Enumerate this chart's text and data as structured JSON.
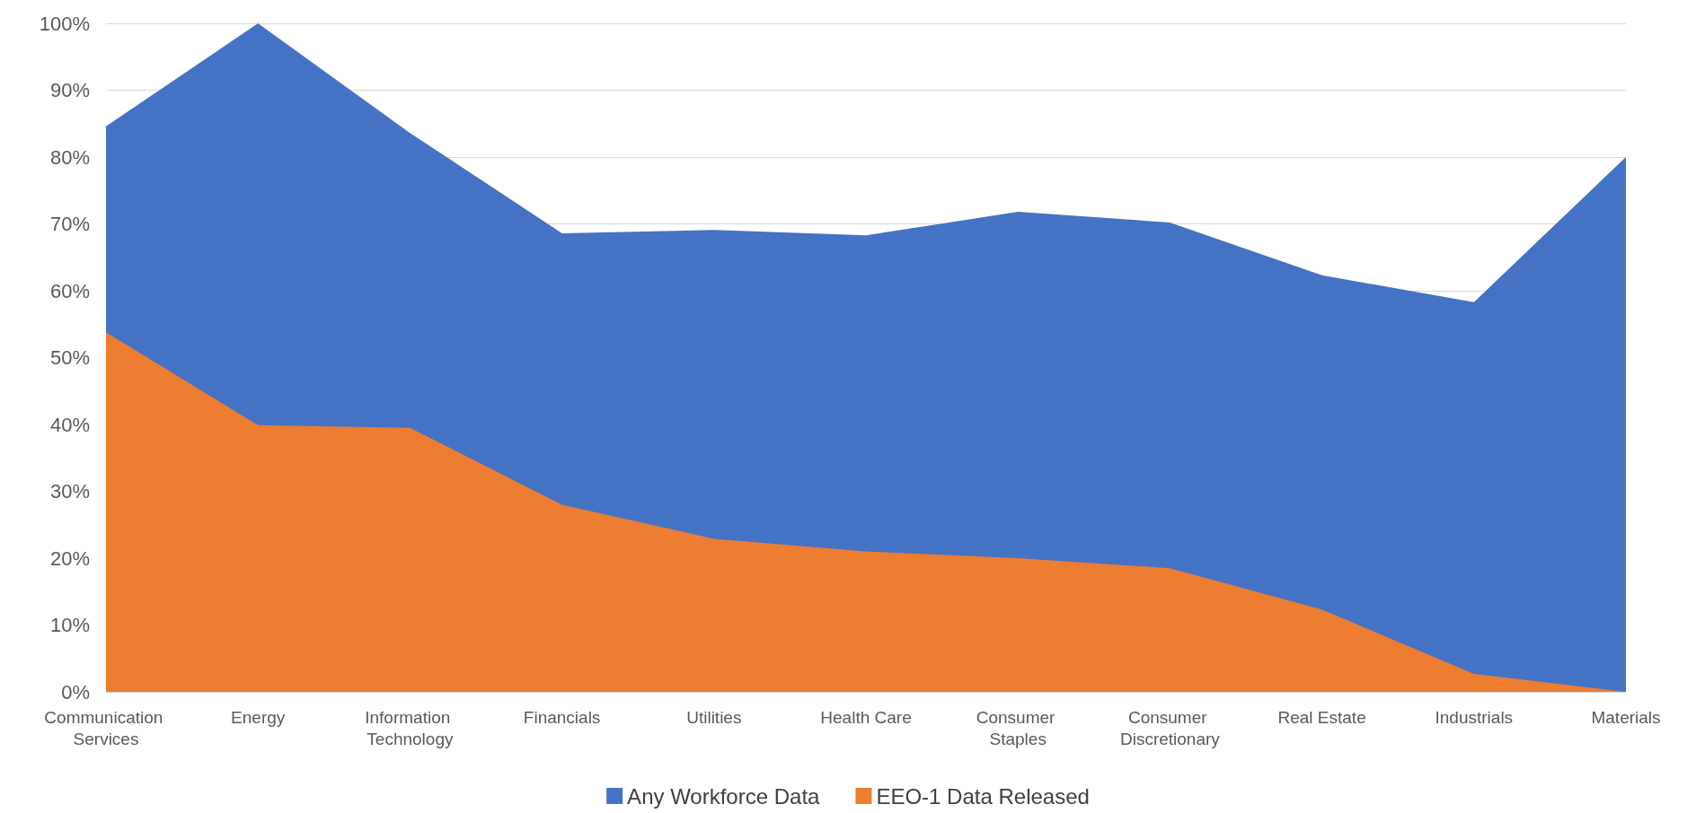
{
  "chart_data": {
    "type": "area",
    "categories": [
      "Communication Services",
      "Energy",
      "Information Technology",
      "Financials",
      "Utilities",
      "Health Care",
      "Consumer Staples",
      "Consumer Discretionary",
      "Real Estate",
      "Industrials",
      "Materials"
    ],
    "series": [
      {
        "name": "Any Workforce Data",
        "color": "#4472c4",
        "values": [
          84.6,
          100,
          83.6,
          68.6,
          69.1,
          68.3,
          71.8,
          70.2,
          62.3,
          58.3,
          80
        ]
      },
      {
        "name": "EEO-1 Data Released",
        "color": "#ed7d31",
        "values": [
          53.8,
          39.9,
          39.5,
          28,
          22.9,
          21,
          20,
          18.5,
          12.3,
          2.7,
          0
        ]
      }
    ],
    "ylim": [
      0,
      100
    ],
    "yticks": [
      {
        "value": 0,
        "label": "0%"
      },
      {
        "value": 10,
        "label": "10%"
      },
      {
        "value": 20,
        "label": "20%"
      },
      {
        "value": 30,
        "label": "30%"
      },
      {
        "value": 40,
        "label": "40%"
      },
      {
        "value": 50,
        "label": "50%"
      },
      {
        "value": 60,
        "label": "60%"
      },
      {
        "value": 70,
        "label": "70%"
      },
      {
        "value": 80,
        "label": "80%"
      },
      {
        "value": 90,
        "label": "90%"
      },
      {
        "value": 100,
        "label": "100%"
      }
    ],
    "grid": "y",
    "legend": "bottom"
  }
}
